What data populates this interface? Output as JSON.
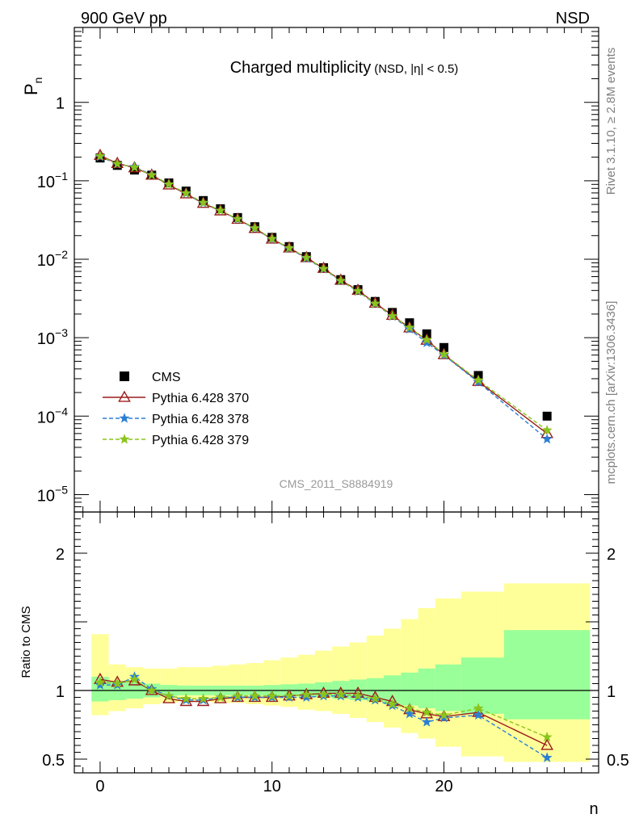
{
  "header": {
    "left": "900 GeV pp",
    "right": "NSD"
  },
  "side_text": {
    "top": "Rivet 3.1.10, ≥ 2.8M events",
    "bottom": "mcplots.cern.ch [arXiv:1306.3436]"
  },
  "chart_data": {
    "type": "scatter",
    "title": "Charged multiplicity",
    "title_note": "(NSD, |η| < 0.5)",
    "watermark": "CMS_2011_S8884919",
    "xlabel": "n",
    "ylabel": "P",
    "ylabel_sub": "n",
    "ratio_ylabel": "Ratio to CMS",
    "xlim": [
      -1.5,
      29
    ],
    "x_ticks": [
      0,
      10,
      20
    ],
    "ylim": [
      6e-06,
      9
    ],
    "y_scale": "log",
    "y_ticks": [
      {
        "value": 1,
        "base": "1",
        "exp": ""
      },
      {
        "value": 0.1,
        "base": "10",
        "exp": "−1"
      },
      {
        "value": 0.01,
        "base": "10",
        "exp": "−2"
      },
      {
        "value": 0.001,
        "base": "10",
        "exp": "−3"
      },
      {
        "value": 0.0001,
        "base": "10",
        "exp": "−4"
      },
      {
        "value": 1e-05,
        "base": "10",
        "exp": "−5"
      }
    ],
    "ratio_ylim": [
      0.4,
      2.3
    ],
    "ratio_ticks": [
      {
        "value": 0.5,
        "label": "0.5"
      },
      {
        "value": 1,
        "label": "1"
      },
      {
        "value": 2,
        "label": "2"
      }
    ],
    "legend_position": "bottom-left",
    "x": [
      0,
      1,
      2,
      3,
      4,
      5,
      6,
      7,
      8,
      9,
      10,
      11,
      12,
      13,
      14,
      15,
      16,
      17,
      18,
      19,
      20,
      22,
      26
    ],
    "data": {
      "name": "CMS",
      "color": "#000000",
      "values": [
        0.195,
        0.157,
        0.137,
        0.118,
        0.094,
        0.074,
        0.056,
        0.044,
        0.034,
        0.026,
        0.019,
        0.0145,
        0.0108,
        0.0078,
        0.0055,
        0.0041,
        0.0029,
        0.0021,
        0.00155,
        0.00112,
        0.00075,
        0.00033,
        0.0001
      ]
    },
    "series": [
      {
        "name": "Pythia 6.428 370",
        "color": "#9b1b1b",
        "style": "solid",
        "marker": "triangle",
        "ratio": [
          1.08,
          1.06,
          1.07,
          1.0,
          0.94,
          0.92,
          0.92,
          0.94,
          0.95,
          0.95,
          0.95,
          0.96,
          0.97,
          0.98,
          0.98,
          0.98,
          0.95,
          0.92,
          0.86,
          0.83,
          0.81,
          0.84,
          0.6
        ]
      },
      {
        "name": "Pythia 6.428 378",
        "color": "#2a7fd4",
        "style": "dashed",
        "marker": "star",
        "ratio": [
          1.04,
          1.04,
          1.1,
          1.01,
          0.96,
          0.93,
          0.93,
          0.95,
          0.95,
          0.95,
          0.95,
          0.95,
          0.95,
          0.96,
          0.96,
          0.95,
          0.93,
          0.89,
          0.83,
          0.77,
          0.8,
          0.82,
          0.51
        ]
      },
      {
        "name": "Pythia 6.428 379",
        "color": "#8ac41c",
        "style": "dashed",
        "marker": "star",
        "ratio": [
          1.06,
          1.05,
          1.08,
          1.0,
          0.96,
          0.94,
          0.94,
          0.95,
          0.96,
          0.96,
          0.96,
          0.96,
          0.97,
          0.97,
          0.97,
          0.96,
          0.94,
          0.9,
          0.87,
          0.84,
          0.82,
          0.87,
          0.66
        ]
      }
    ],
    "uncertainty_bands": {
      "bin_edges": [
        -0.5,
        0.5,
        1.5,
        2.5,
        3.5,
        4.5,
        5.5,
        6.5,
        7.5,
        8.5,
        9.5,
        10.5,
        11.5,
        12.5,
        13.5,
        14.5,
        15.5,
        16.5,
        17.5,
        18.5,
        19.5,
        21.0,
        23.5,
        28.5
      ],
      "stat_color": "#99ff99",
      "total_color": "#ffff99",
      "stat": [
        [
          0.92,
          1.1
        ],
        [
          0.93,
          1.07
        ],
        [
          0.94,
          1.06
        ],
        [
          0.95,
          1.05
        ],
        [
          0.96,
          1.04
        ],
        [
          0.965,
          1.035
        ],
        [
          0.965,
          1.035
        ],
        [
          0.965,
          1.035
        ],
        [
          0.965,
          1.035
        ],
        [
          0.965,
          1.035
        ],
        [
          0.96,
          1.04
        ],
        [
          0.96,
          1.045
        ],
        [
          0.955,
          1.05
        ],
        [
          0.95,
          1.06
        ],
        [
          0.94,
          1.07
        ],
        [
          0.93,
          1.08
        ],
        [
          0.92,
          1.09
        ],
        [
          0.9,
          1.11
        ],
        [
          0.89,
          1.13
        ],
        [
          0.87,
          1.16
        ],
        [
          0.85,
          1.19
        ],
        [
          0.83,
          1.24
        ],
        [
          0.79,
          1.44
        ]
      ],
      "total": [
        [
          0.82,
          1.41
        ],
        [
          0.85,
          1.19
        ],
        [
          0.87,
          1.17
        ],
        [
          0.9,
          1.16
        ],
        [
          0.91,
          1.16
        ],
        [
          0.92,
          1.17
        ],
        [
          0.92,
          1.17
        ],
        [
          0.91,
          1.18
        ],
        [
          0.91,
          1.19
        ],
        [
          0.9,
          1.2
        ],
        [
          0.89,
          1.22
        ],
        [
          0.88,
          1.24
        ],
        [
          0.86,
          1.26
        ],
        [
          0.85,
          1.29
        ],
        [
          0.83,
          1.32
        ],
        [
          0.8,
          1.35
        ],
        [
          0.77,
          1.4
        ],
        [
          0.73,
          1.45
        ],
        [
          0.69,
          1.52
        ],
        [
          0.65,
          1.6
        ],
        [
          0.59,
          1.67
        ],
        [
          0.52,
          1.72
        ],
        [
          0.48,
          1.78
        ]
      ]
    }
  }
}
